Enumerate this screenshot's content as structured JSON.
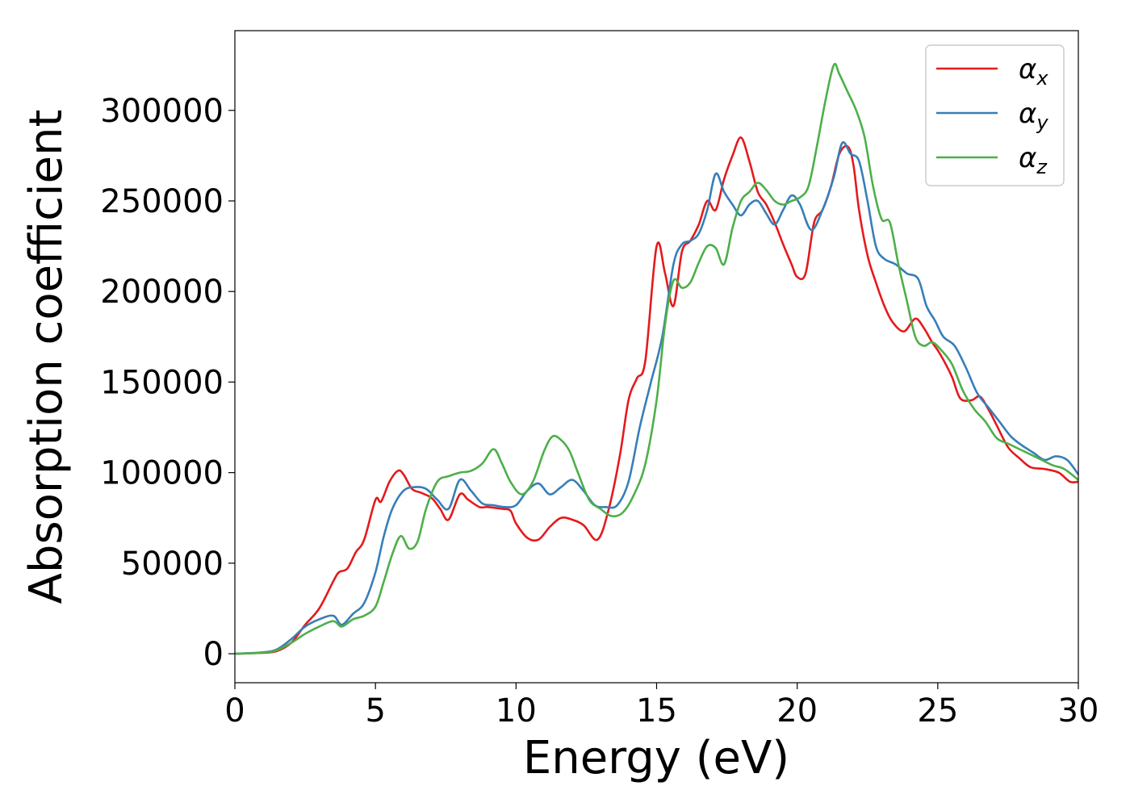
{
  "chart_data": {
    "type": "line",
    "xlabel": "Energy (eV)",
    "ylabel": "Absorption coefficient",
    "xlim": [
      0,
      30
    ],
    "ylim": [
      -16000,
      344000
    ],
    "xticks": [
      0,
      5,
      10,
      15,
      20,
      25,
      30
    ],
    "xtick_labels": [
      "0",
      "5",
      "10",
      "15",
      "20",
      "25",
      "30"
    ],
    "yticks": [
      0,
      50000,
      100000,
      150000,
      200000,
      250000,
      300000
    ],
    "ytick_labels": [
      "0",
      "50000",
      "100000",
      "150000",
      "200000",
      "250000",
      "300000"
    ],
    "grid": false,
    "legend_position": "top-right",
    "series": [
      {
        "name": "α_x",
        "label_main": "α",
        "label_sub": "x",
        "color": "#e41a1c",
        "x": [
          0,
          1,
          1.5,
          2,
          2.5,
          3,
          3.5,
          3.7,
          4,
          4.3,
          4.6,
          5,
          5.2,
          5.5,
          5.8,
          6,
          6.3,
          6.6,
          7,
          7.3,
          7.6,
          8,
          8.3,
          8.7,
          9,
          9.5,
          9.8,
          10,
          10.4,
          10.8,
          11.2,
          11.6,
          12,
          12.4,
          12.9,
          13.3,
          13.7,
          14,
          14.3,
          14.6,
          15,
          15.3,
          15.6,
          15.9,
          16.2,
          16.5,
          16.8,
          17.1,
          17.4,
          17.7,
          18,
          18.3,
          18.6,
          18.9,
          19.2,
          19.5,
          19.8,
          20,
          20.3,
          20.6,
          20.9,
          21.2,
          21.5,
          21.8,
          22,
          22.2,
          22.5,
          22.8,
          23.1,
          23.4,
          23.8,
          24.2,
          24.5,
          24.8,
          25.1,
          25.5,
          25.8,
          26.2,
          26.5,
          26.8,
          27.1,
          27.5,
          27.9,
          28.3,
          28.8,
          29.3,
          29.7,
          30
        ],
        "y": [
          0,
          500,
          1500,
          6000,
          16000,
          25000,
          40000,
          45000,
          47000,
          56000,
          63000,
          85000,
          84000,
          95000,
          101000,
          99000,
          91000,
          89000,
          86000,
          80000,
          74000,
          88000,
          85000,
          81000,
          81000,
          80000,
          79000,
          72000,
          64000,
          63000,
          70000,
          75000,
          74000,
          71000,
          63000,
          80000,
          110000,
          140000,
          152000,
          162000,
          225000,
          210000,
          192000,
          222000,
          228000,
          237000,
          250000,
          245000,
          262000,
          275000,
          285000,
          272000,
          255000,
          248000,
          238000,
          226000,
          215000,
          208000,
          210000,
          238000,
          245000,
          258000,
          276000,
          280000,
          270000,
          245000,
          220000,
          205000,
          192000,
          183000,
          178000,
          185000,
          180000,
          172000,
          165000,
          153000,
          141000,
          140000,
          142000,
          135000,
          126000,
          114000,
          108000,
          103000,
          102000,
          100000,
          95000,
          95000
        ]
      },
      {
        "name": "α_y",
        "label_main": "α",
        "label_sub": "y",
        "color": "#377eb8",
        "x": [
          0,
          1,
          1.5,
          2,
          2.5,
          3,
          3.5,
          3.8,
          4.2,
          4.6,
          5,
          5.3,
          5.6,
          6,
          6.4,
          6.8,
          7.2,
          7.6,
          8,
          8.4,
          8.8,
          9.2,
          9.6,
          10,
          10.4,
          10.8,
          11.2,
          11.6,
          12,
          12.4,
          12.8,
          13.2,
          13.6,
          14,
          14.4,
          14.8,
          15.2,
          15.6,
          15.9,
          16.2,
          16.5,
          16.8,
          17.1,
          17.4,
          17.7,
          18,
          18.3,
          18.6,
          18.9,
          19.2,
          19.5,
          19.8,
          20.1,
          20.5,
          20.9,
          21.3,
          21.6,
          21.9,
          22.2,
          22.5,
          22.8,
          23.1,
          23.5,
          23.9,
          24.3,
          24.6,
          24.9,
          25.2,
          25.6,
          26,
          26.4,
          26.8,
          27.2,
          27.6,
          28,
          28.4,
          28.8,
          29.2,
          29.6,
          30
        ],
        "y": [
          0,
          800,
          2500,
          8000,
          15000,
          19000,
          21000,
          16000,
          22000,
          28000,
          45000,
          65000,
          80000,
          90000,
          92000,
          91000,
          85000,
          80000,
          96000,
          90000,
          83000,
          82000,
          81000,
          82000,
          90000,
          94000,
          88000,
          92000,
          96000,
          90000,
          82000,
          81000,
          82000,
          95000,
          125000,
          150000,
          175000,
          215000,
          226000,
          228000,
          232000,
          245000,
          265000,
          255000,
          248000,
          242000,
          248000,
          250000,
          243000,
          237000,
          245000,
          253000,
          248000,
          234000,
          245000,
          263000,
          282000,
          276000,
          272000,
          250000,
          225000,
          218000,
          215000,
          210000,
          207000,
          192000,
          184000,
          175000,
          170000,
          158000,
          144000,
          136000,
          128000,
          120000,
          115000,
          111000,
          107000,
          109000,
          107000,
          99000
        ]
      },
      {
        "name": "α_z",
        "label_main": "α",
        "label_sub": "z",
        "color": "#4daf4a",
        "x": [
          0,
          1,
          1.5,
          2,
          2.5,
          3,
          3.5,
          3.8,
          4.2,
          4.6,
          5,
          5.3,
          5.6,
          5.9,
          6.2,
          6.5,
          6.8,
          7.2,
          7.6,
          8,
          8.4,
          8.8,
          9.2,
          9.5,
          9.8,
          10.2,
          10.6,
          11,
          11.3,
          11.6,
          11.9,
          12.2,
          12.6,
          13,
          13.4,
          13.8,
          14.2,
          14.6,
          15,
          15.3,
          15.6,
          15.9,
          16.2,
          16.5,
          16.8,
          17.1,
          17.4,
          17.7,
          18,
          18.3,
          18.6,
          18.9,
          19.2,
          19.5,
          19.8,
          20.1,
          20.4,
          20.7,
          21,
          21.3,
          21.5,
          21.8,
          22.1,
          22.4,
          22.7,
          23,
          23.3,
          23.6,
          23.9,
          24.2,
          24.5,
          24.8,
          25.1,
          25.5,
          25.9,
          26.3,
          26.7,
          27.1,
          27.5,
          27.9,
          28.3,
          28.7,
          29.1,
          29.5,
          30
        ],
        "y": [
          0,
          600,
          2000,
          6000,
          11000,
          15000,
          18000,
          15000,
          19000,
          21000,
          26000,
          40000,
          55000,
          65000,
          58000,
          62000,
          80000,
          95000,
          98000,
          100000,
          101000,
          105000,
          113000,
          105000,
          95000,
          88000,
          95000,
          112000,
          120000,
          118000,
          112000,
          100000,
          85000,
          80000,
          76000,
          78000,
          88000,
          105000,
          140000,
          182000,
          206000,
          202000,
          205000,
          216000,
          225000,
          224000,
          215000,
          235000,
          250000,
          255000,
          260000,
          256000,
          250000,
          248000,
          250000,
          252000,
          258000,
          280000,
          305000,
          325000,
          320000,
          310000,
          300000,
          285000,
          258000,
          240000,
          238000,
          215000,
          195000,
          175000,
          170000,
          172000,
          168000,
          160000,
          145000,
          135000,
          128000,
          119000,
          116000,
          113000,
          110000,
          107000,
          104000,
          102000,
          96000
        ]
      }
    ]
  }
}
